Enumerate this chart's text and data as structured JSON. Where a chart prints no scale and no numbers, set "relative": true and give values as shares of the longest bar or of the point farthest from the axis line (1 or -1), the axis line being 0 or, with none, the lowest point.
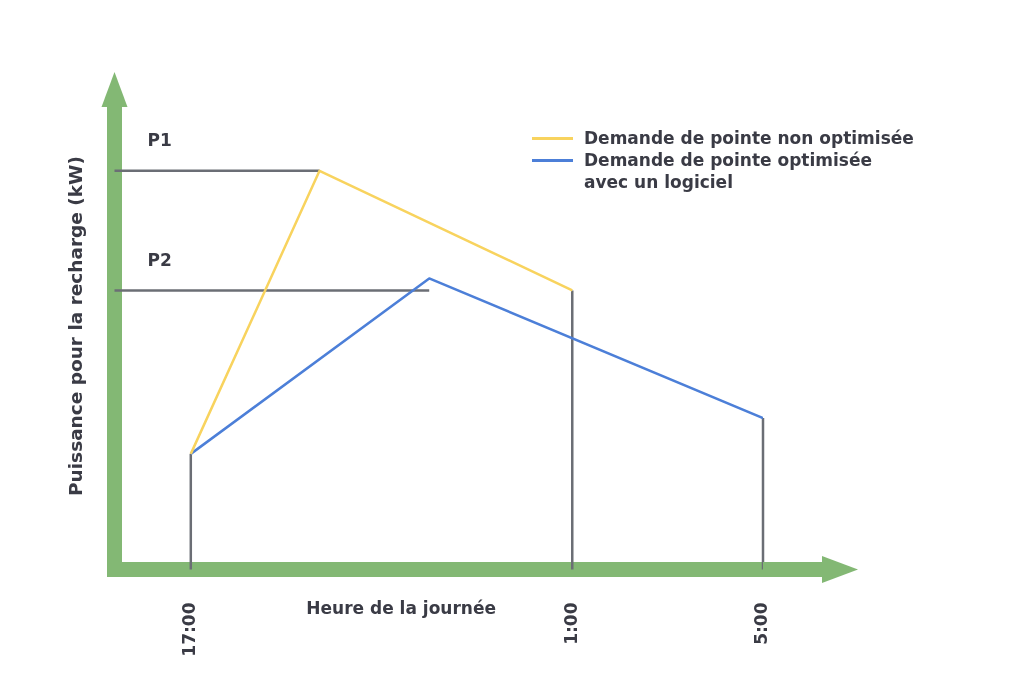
{
  "chart_data": {
    "type": "line",
    "relative": true,
    "xlabel": "Heure de la journée",
    "ylabel": "Puissance pour la recharge (kW)",
    "xlim": [
      "2000-01-01T15:24",
      "2000-01-02T05:00"
    ],
    "xticks": [
      {
        "value": "2000-01-01T17:00",
        "label": "17:00"
      },
      {
        "value": "2000-01-02T01:00",
        "label": "1:00"
      },
      {
        "value": "2000-01-02T05:00",
        "label": "5:00"
      }
    ],
    "series": [
      {
        "name": "Demande de pointe non optimisée",
        "color": "#f8d35e",
        "x": [
          "2000-01-01T17:00",
          "2000-01-01T19:42",
          "2000-01-02T01:00"
        ],
        "values": [
          0.29,
          1,
          0.7
        ]
      },
      {
        "name": "Demande de pointe optimisée avec un logiciel",
        "color": "#4c7fd8",
        "x": [
          "2000-01-01T17:00",
          "2000-01-01T22:00",
          "2000-01-02T05:00"
        ],
        "values": [
          0.29,
          0.73,
          0.38
        ]
      }
    ],
    "ref_lines": [
      {
        "axis": "y",
        "value": 1,
        "label": "P1",
        "color": "#6b6e75"
      },
      {
        "axis": "y",
        "value": 0.7,
        "label": "P2",
        "color": "#6b6e75"
      },
      {
        "axis": "x",
        "value": "2000-01-01T17:00",
        "color": "#6b6e75"
      },
      {
        "axis": "x",
        "value": "2000-01-02T01:00",
        "color": "#6b6e75"
      },
      {
        "axis": "x",
        "value": "2000-01-02T05:00",
        "color": "#6b6e75"
      }
    ],
    "legend": "top right",
    "marker": "none",
    "tick_labels": "x"
  }
}
